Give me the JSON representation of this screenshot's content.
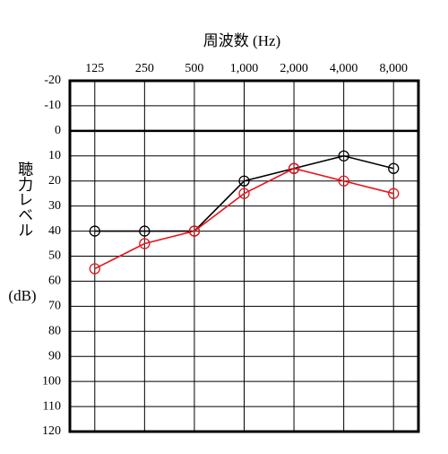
{
  "chart_data": {
    "type": "line",
    "title": "周波数 (Hz)",
    "y_label": "聴力レベル",
    "y_unit": "(dB)",
    "categories": [
      "125",
      "250",
      "500",
      "1,000",
      "2,000",
      "4,000",
      "8,000"
    ],
    "series": [
      {
        "color": "#000000",
        "values": [
          40,
          40,
          40,
          20,
          15,
          10,
          15
        ]
      },
      {
        "color": "#e8141b",
        "values": [
          55,
          45,
          40,
          25,
          15,
          20,
          25
        ]
      }
    ],
    "ylim": [
      -20,
      120
    ],
    "y_reversed": true,
    "yticks": [
      -20,
      -10,
      0,
      10,
      20,
      30,
      40,
      50,
      60,
      70,
      80,
      90,
      100,
      110,
      120
    ],
    "grid": true
  }
}
